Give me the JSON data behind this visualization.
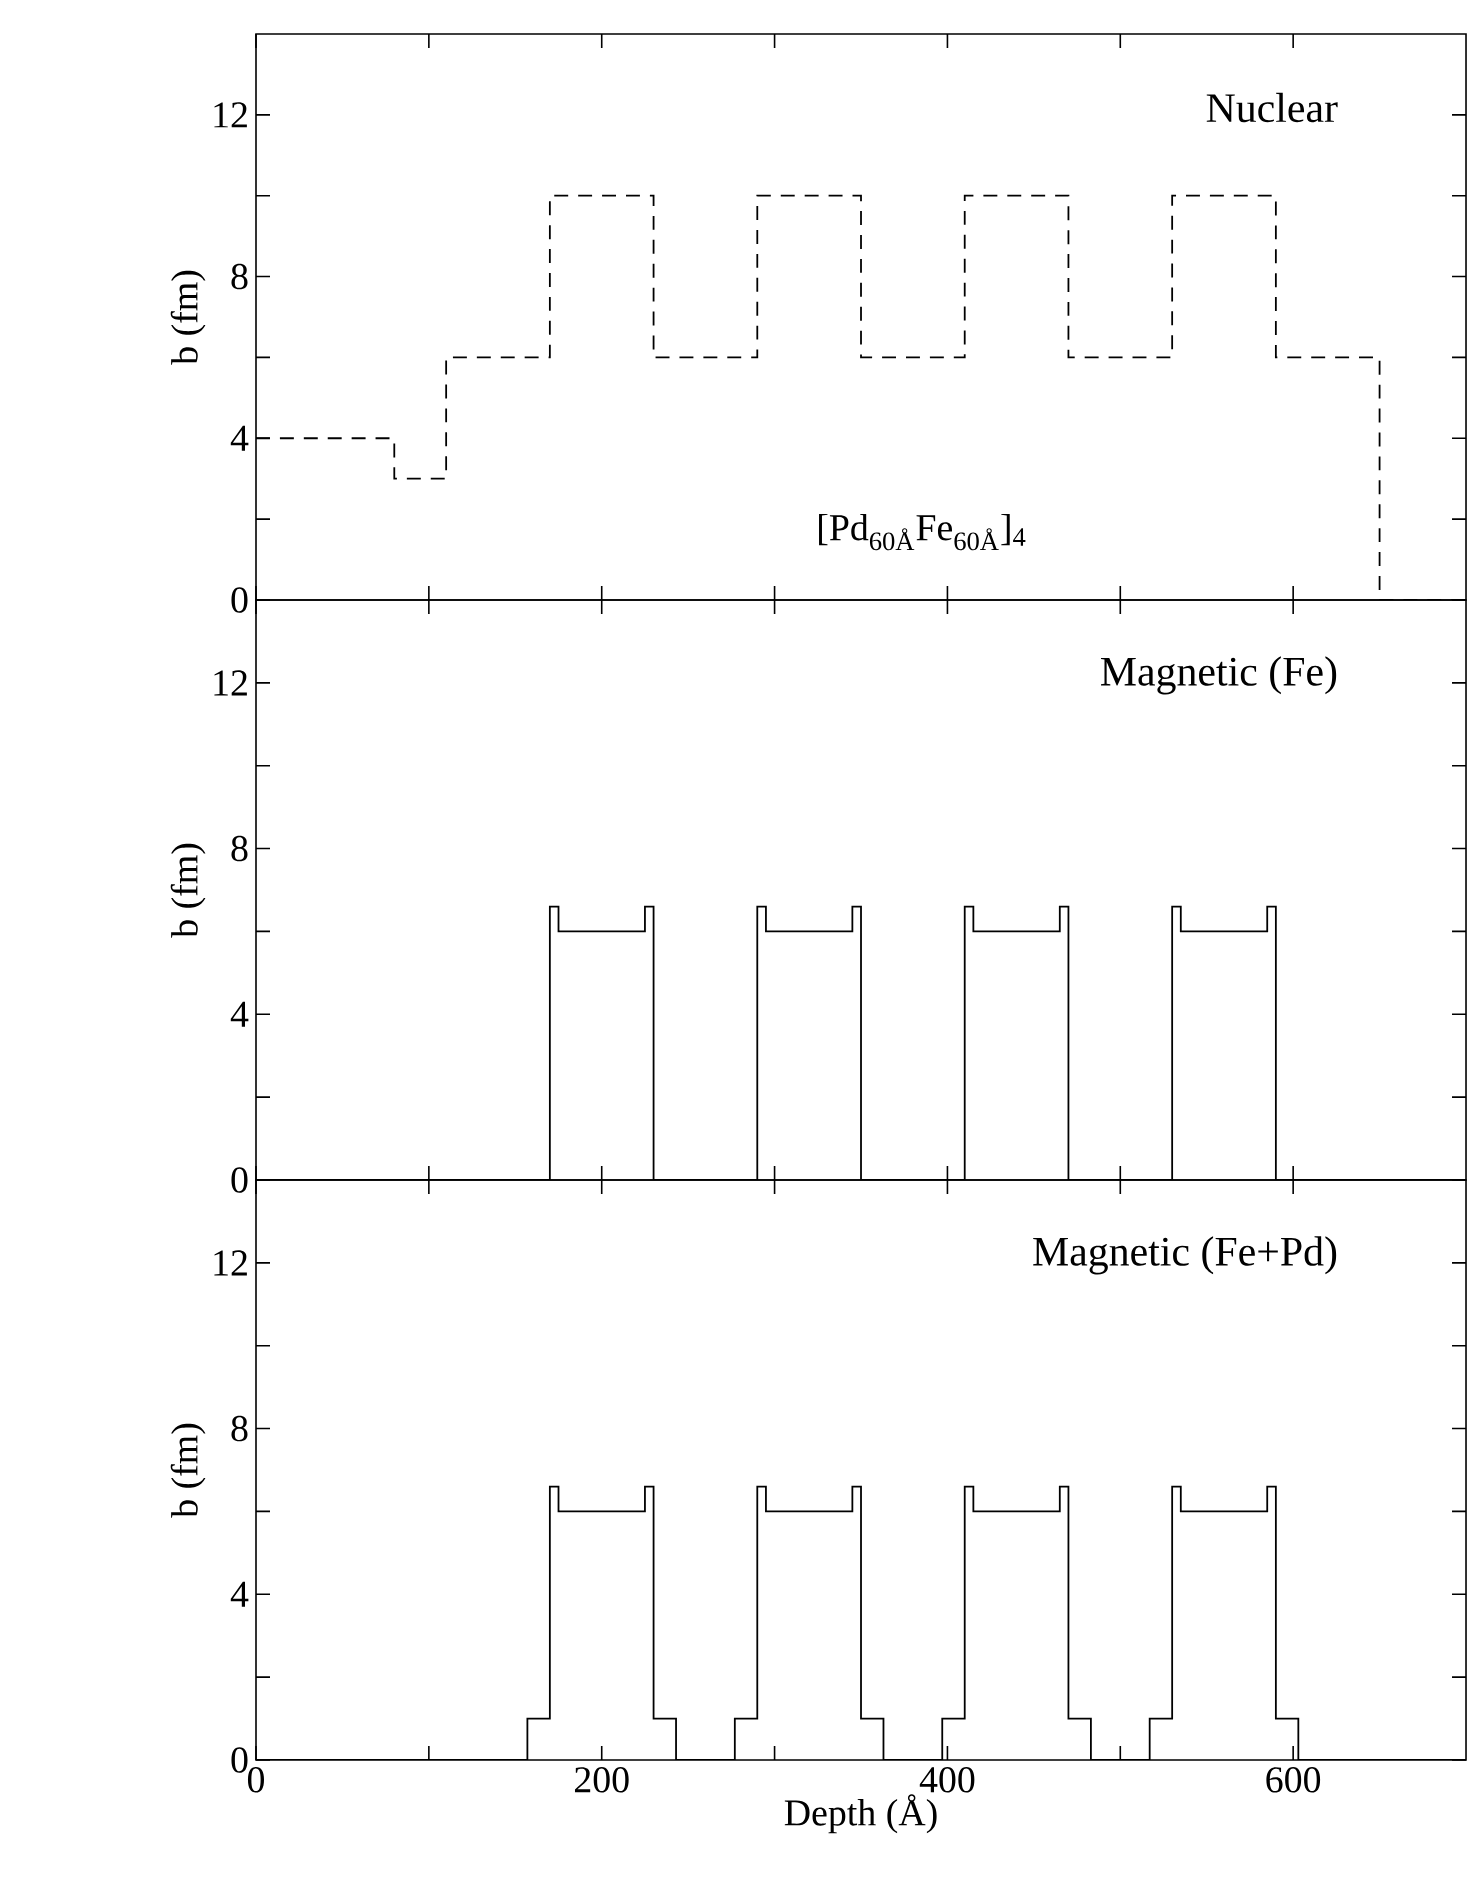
{
  "chart_data": [
    {
      "type": "step",
      "title": "Nuclear",
      "annotations": [
        "[Pd$_{60Å}$Fe$_{60Å}$]$_{4}$"
      ],
      "ylabel": "b (fm)",
      "color": "#000000",
      "line_style": "dashed",
      "x": [
        0,
        80,
        110,
        170,
        230,
        290,
        350,
        410,
        470,
        530,
        590,
        650,
        700
      ],
      "values": [
        4,
        3,
        6,
        10,
        6,
        10,
        6,
        10,
        6,
        10,
        6,
        0,
        0
      ],
      "xlim": [
        0,
        700
      ],
      "ylim": [
        0,
        14
      ],
      "tick_labels": "y",
      "xticks": [
        0,
        {
          "value": 100,
          "label": null
        },
        200,
        {
          "value": 300,
          "label": null
        },
        400,
        {
          "value": 500,
          "label": null
        },
        600
      ],
      "yticks": [
        0,
        {
          "value": 2,
          "label": null
        },
        4,
        {
          "value": 6,
          "label": null
        },
        8,
        {
          "value": 10,
          "label": null
        },
        12
      ]
    },
    {
      "type": "step",
      "title": "Magnetic (Fe)",
      "ylabel": "b (fm)",
      "color": "#000000",
      "line_style": "solid",
      "x": [
        0,
        170,
        175,
        225,
        230,
        290,
        295,
        345,
        350,
        410,
        415,
        465,
        470,
        530,
        535,
        585,
        590,
        700
      ],
      "values": [
        0,
        6.6,
        6,
        6.6,
        0,
        6.6,
        6,
        6.6,
        0,
        6.6,
        6,
        6.6,
        0,
        6.6,
        6,
        6.6,
        0,
        0
      ],
      "xlim": [
        0,
        700
      ],
      "ylim": [
        0,
        14
      ],
      "tick_labels": "y",
      "xticks": [
        0,
        {
          "value": 100,
          "label": null
        },
        200,
        {
          "value": 300,
          "label": null
        },
        400,
        {
          "value": 500,
          "label": null
        },
        600
      ],
      "yticks": [
        0,
        {
          "value": 2,
          "label": null
        },
        4,
        {
          "value": 6,
          "label": null
        },
        8,
        {
          "value": 10,
          "label": null
        },
        12
      ]
    },
    {
      "type": "step",
      "title": "Magnetic (Fe+Pd)",
      "ylabel": "b (fm)",
      "xlabel": "Depth (Å)",
      "color": "#000000",
      "line_style": "solid",
      "x": [
        0,
        157,
        170,
        175,
        225,
        230,
        243,
        277,
        290,
        295,
        345,
        350,
        363,
        397,
        410,
        415,
        465,
        470,
        483,
        517,
        530,
        535,
        585,
        590,
        603,
        700
      ],
      "values": [
        0,
        1,
        6.6,
        6,
        6.6,
        1,
        0,
        1,
        6.6,
        6,
        6.6,
        1,
        0,
        1,
        6.6,
        6,
        6.6,
        1,
        0,
        1,
        6.6,
        6,
        6.6,
        1,
        0,
        0
      ],
      "xlim": [
        0,
        700
      ],
      "ylim": [
        0,
        14
      ],
      "xticks": [
        0,
        {
          "value": 100,
          "label": null
        },
        200,
        {
          "value": 300,
          "label": null
        },
        400,
        {
          "value": 500,
          "label": null
        },
        600
      ],
      "yticks": [
        0,
        {
          "value": 2,
          "label": null
        },
        4,
        {
          "value": 6,
          "label": null
        },
        8,
        {
          "value": 10,
          "label": null
        },
        12
      ]
    }
  ]
}
